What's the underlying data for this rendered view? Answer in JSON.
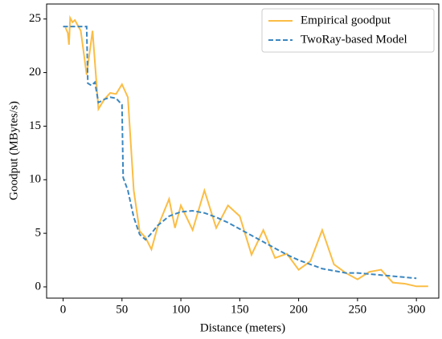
{
  "chart_data": {
    "type": "line",
    "x_label": "Distance (meters)",
    "y_label": "Goodput (MBytes/s)",
    "xlim": [
      -14,
      319
    ],
    "ylim": [
      -1.05,
      26.4
    ],
    "xticks": [
      0,
      50,
      100,
      150,
      200,
      250,
      300
    ],
    "yticks": [
      0,
      5,
      10,
      15,
      20,
      25
    ],
    "grid": false,
    "legend": "upper right",
    "series": [
      {
        "name": "Empirical goodput",
        "color": "#fbbd45",
        "dash": false,
        "x": [
          2,
          4,
          5,
          6,
          8,
          10,
          12,
          15,
          20,
          25,
          30,
          35,
          40,
          45,
          50,
          55,
          60,
          65,
          70,
          75,
          80,
          90,
          95,
          100,
          110,
          120,
          130,
          140,
          150,
          160,
          170,
          180,
          190,
          200,
          210,
          220,
          230,
          240,
          250,
          260,
          270,
          280,
          290,
          300,
          310
        ],
        "values": [
          24.2,
          23.7,
          22.6,
          25.1,
          24.7,
          24.9,
          24.5,
          23.9,
          19.8,
          23.9,
          16.6,
          17.5,
          18.1,
          18.0,
          18.9,
          17.7,
          9.0,
          5.2,
          4.6,
          3.5,
          5.5,
          8.2,
          5.5,
          7.6,
          5.3,
          9.0,
          5.5,
          7.6,
          6.6,
          3.0,
          5.3,
          2.7,
          3.1,
          1.6,
          2.4,
          5.3,
          2.1,
          1.3,
          0.7,
          1.4,
          1.6,
          0.4,
          0.3,
          0.05,
          0.05
        ]
      },
      {
        "name": "TwoRay-based Model",
        "color": "#3b87c0",
        "dash": true,
        "x": [
          0,
          20,
          21,
          24,
          27,
          30,
          35,
          40,
          45,
          50,
          51,
          55,
          60,
          65,
          70,
          75,
          80,
          90,
          100,
          110,
          120,
          130,
          140,
          150,
          160,
          170,
          180,
          190,
          200,
          210,
          220,
          230,
          240,
          250,
          260,
          270,
          280,
          290,
          300
        ],
        "values": [
          24.3,
          24.3,
          19.0,
          18.8,
          19.1,
          17.2,
          17.5,
          17.7,
          17.6,
          17.0,
          10.2,
          9.0,
          6.5,
          4.9,
          4.4,
          5.0,
          5.7,
          6.6,
          7.0,
          7.1,
          6.9,
          6.5,
          6.0,
          5.4,
          4.8,
          4.2,
          3.6,
          3.0,
          2.5,
          2.1,
          1.7,
          1.5,
          1.3,
          1.3,
          1.2,
          1.1,
          1.0,
          0.9,
          0.8
        ]
      }
    ]
  }
}
